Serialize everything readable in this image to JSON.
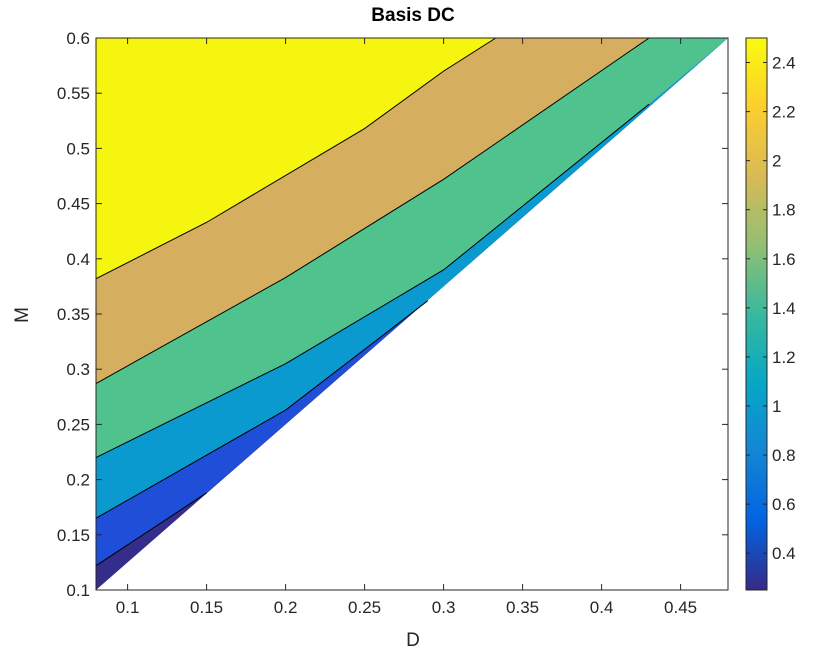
{
  "chart_data": {
    "type": "contour",
    "title": "Basis DC",
    "xlabel": "D",
    "ylabel": "M",
    "xlim": [
      0.08,
      0.48
    ],
    "ylim": [
      0.1,
      0.6
    ],
    "x_ticks": [
      0.1,
      0.15,
      0.2,
      0.25,
      0.3,
      0.35,
      0.4,
      0.45
    ],
    "x_tick_labels": [
      "0.1",
      "0.15",
      "0.2",
      "0.25",
      "0.3",
      "0.35",
      "0.4",
      "0.45"
    ],
    "y_ticks": [
      0.1,
      0.15,
      0.2,
      0.25,
      0.3,
      0.35,
      0.4,
      0.45,
      0.5,
      0.55,
      0.6
    ],
    "y_tick_labels": [
      "0.1",
      "0.15",
      "0.2",
      "0.25",
      "0.3",
      "0.35",
      "0.4",
      "0.45",
      "0.5",
      "0.55",
      "0.6"
    ],
    "valid_region_boundary": [
      [
        0.08,
        0.1
      ],
      [
        0.48,
        0.6
      ]
    ],
    "contour_levels": [
      {
        "value": 0.5,
        "points": [
          [
            0.08,
            0.122
          ],
          [
            0.15,
            0.188
          ]
        ]
      },
      {
        "value": 0.75,
        "points": [
          [
            0.08,
            0.165
          ],
          [
            0.2,
            0.263
          ],
          [
            0.29,
            0.362
          ]
        ]
      },
      {
        "value": 1.0,
        "points": [
          [
            0.08,
            0.22
          ],
          [
            0.2,
            0.305
          ],
          [
            0.3,
            0.39
          ],
          [
            0.43,
            0.54
          ]
        ]
      },
      {
        "value": 1.5,
        "points": [
          [
            0.08,
            0.287
          ],
          [
            0.2,
            0.383
          ],
          [
            0.3,
            0.472
          ],
          [
            0.43,
            0.6
          ]
        ]
      },
      {
        "value": 2.0,
        "points": [
          [
            0.08,
            0.382
          ],
          [
            0.15,
            0.433
          ],
          [
            0.25,
            0.518
          ],
          [
            0.3,
            0.57
          ],
          [
            0.333,
            0.6
          ]
        ]
      }
    ],
    "bands": [
      {
        "from": 0.25,
        "to": 0.5,
        "color": "#342e8a"
      },
      {
        "from": 0.5,
        "to": 0.75,
        "color": "#1f4fd8"
      },
      {
        "from": 0.75,
        "to": 1.0,
        "color": "#0a9ad0"
      },
      {
        "from": 1.0,
        "to": 1.5,
        "color": "#4fc28e"
      },
      {
        "from": 1.5,
        "to": 2.0,
        "color": "#d6ae5f"
      },
      {
        "from": 2.0,
        "to": 2.5,
        "color": "#f5f50f"
      }
    ],
    "colorbar": {
      "range": [
        0.25,
        2.5
      ],
      "ticks": [
        0.4,
        0.6,
        0.8,
        1.0,
        1.2,
        1.4,
        1.6,
        1.8,
        2.0,
        2.2,
        2.4
      ],
      "tick_labels": [
        "0.4",
        "0.6",
        "0.8",
        "1",
        "1.2",
        "1.4",
        "1.6",
        "1.8",
        "2",
        "2.2",
        "2.4"
      ],
      "colormap": [
        "#352a87",
        "#0363e1",
        "#1485d4",
        "#06a7c6",
        "#38b99e",
        "#92bf73",
        "#d9ba56",
        "#fcce2e",
        "#f9fb0e"
      ]
    }
  }
}
